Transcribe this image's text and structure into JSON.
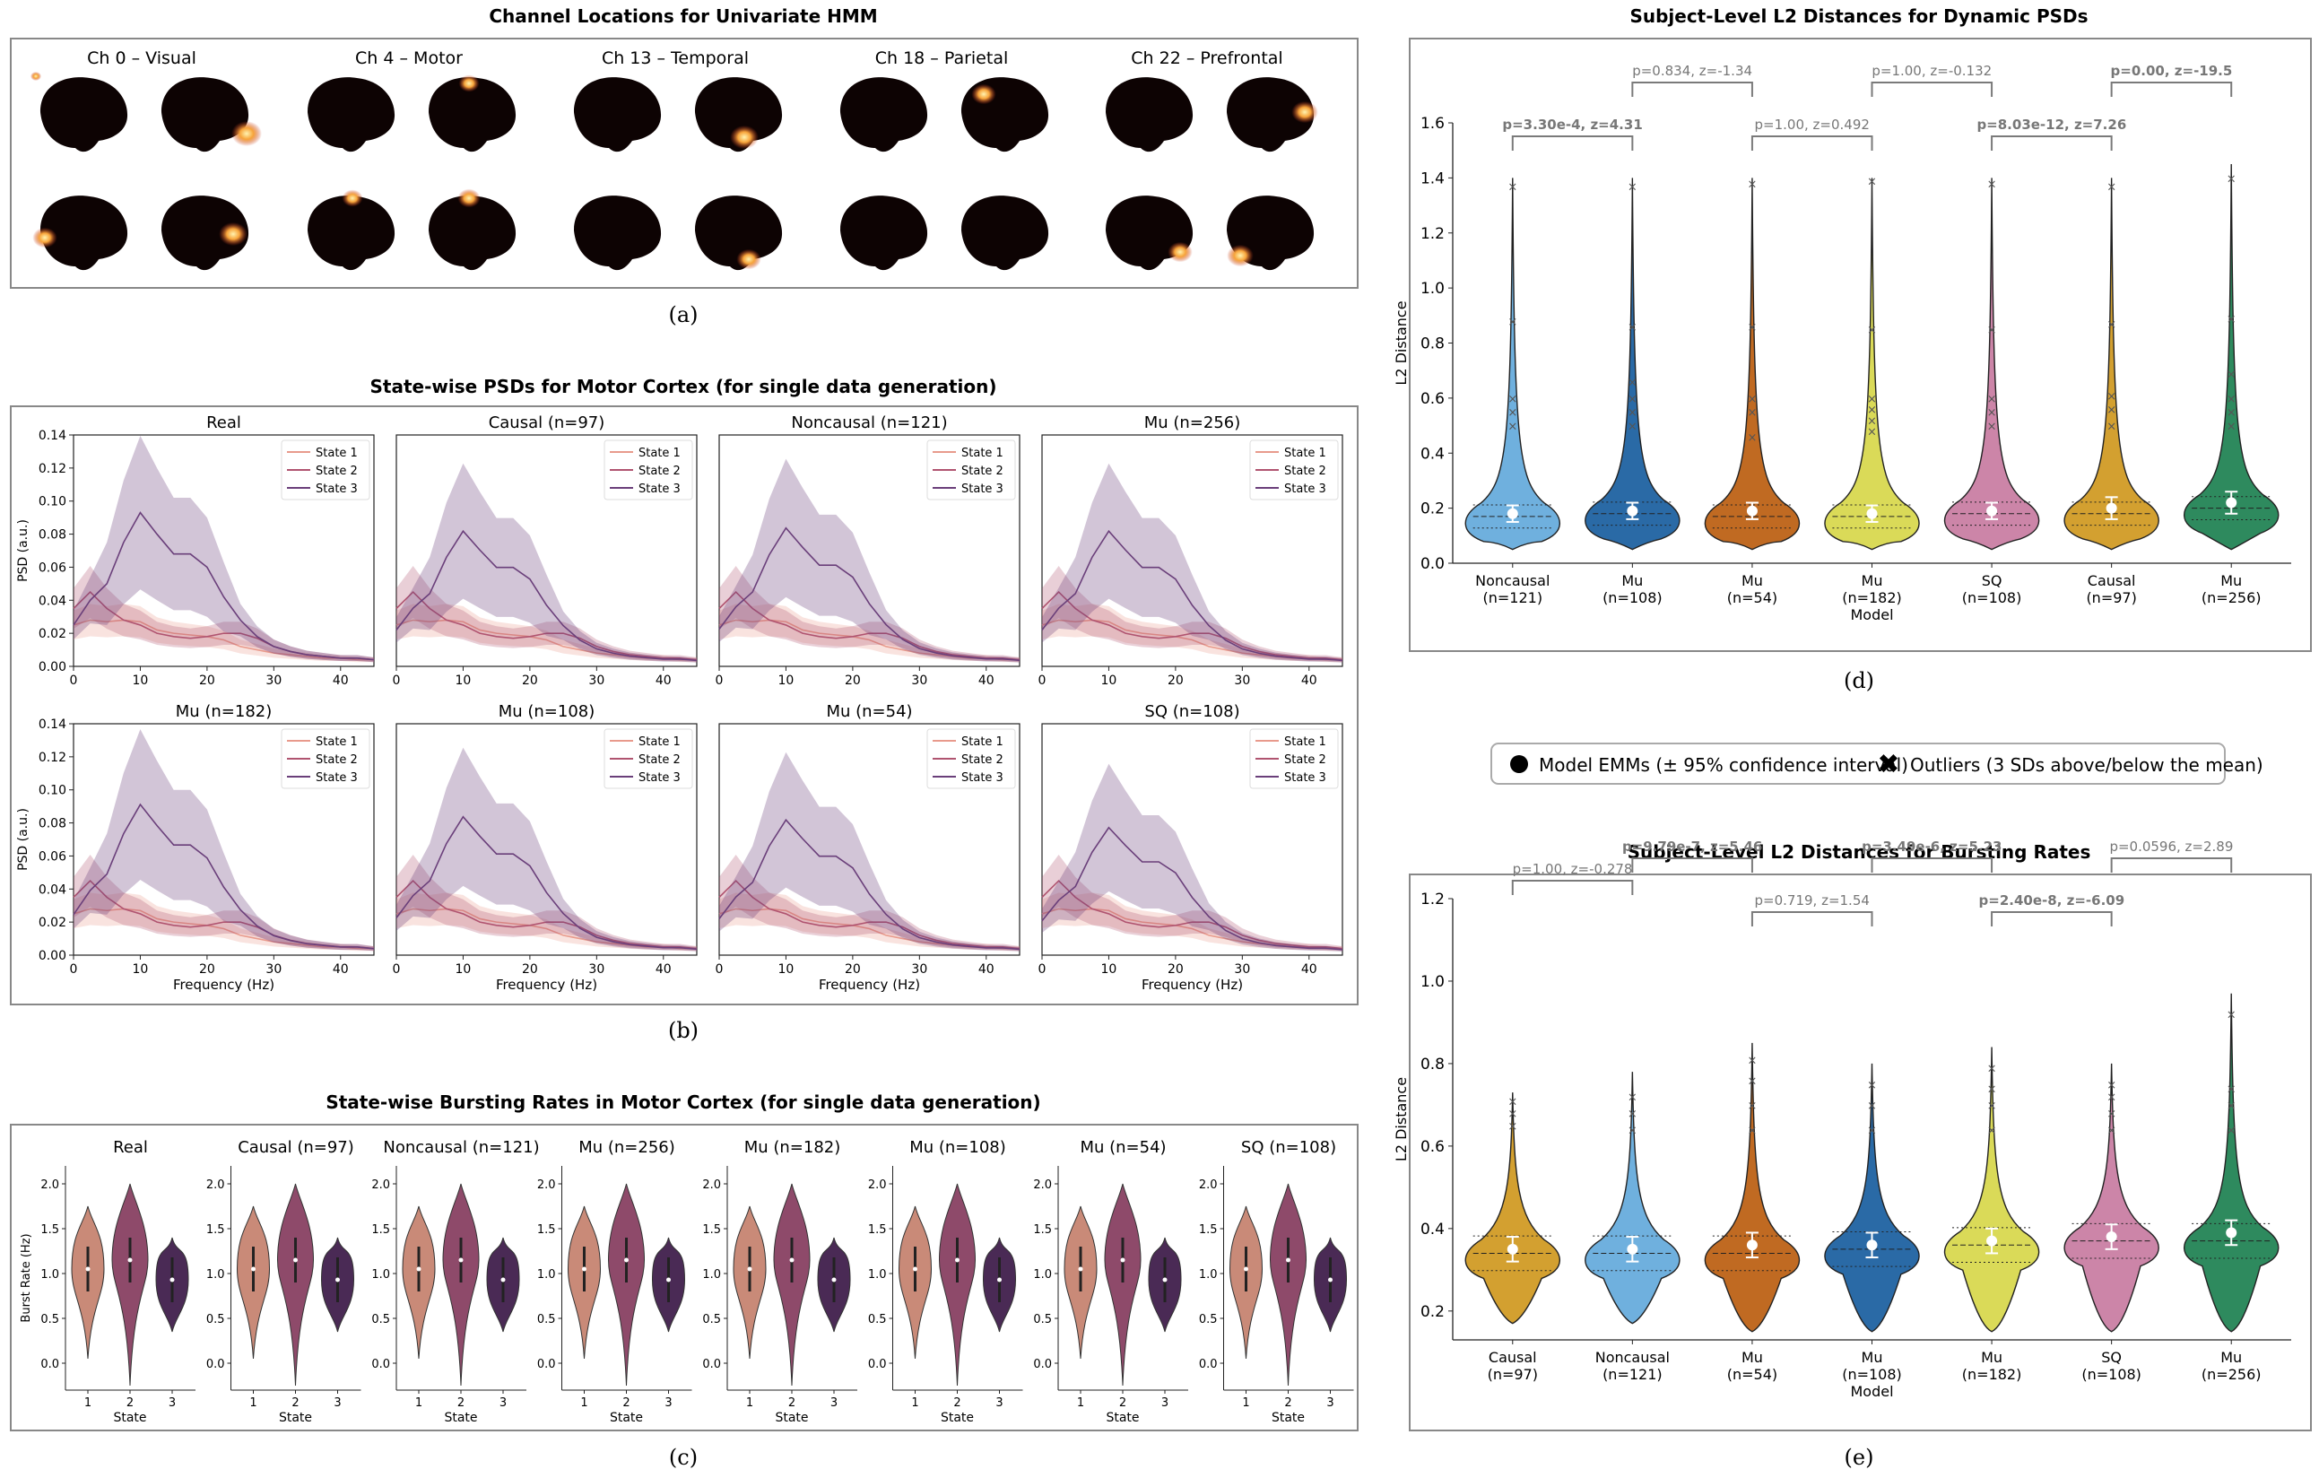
{
  "figure": {
    "panel_letters": [
      "(a)",
      "(b)",
      "(c)",
      "(d)",
      "(e)"
    ]
  },
  "panel_a": {
    "title": "Channel Locations for Univariate HMM",
    "channels": [
      {
        "label": "Ch 0 – Visual",
        "focus": "occipital"
      },
      {
        "label": "Ch 4 – Motor",
        "focus": "motor"
      },
      {
        "label": "Ch 13 – Temporal",
        "focus": "temporal"
      },
      {
        "label": "Ch 18 – Parietal",
        "focus": "parietal"
      },
      {
        "label": "Ch 22 – Prefrontal",
        "focus": "prefrontal"
      }
    ]
  },
  "colors": {
    "state1": "#e89a8c",
    "state2": "#b05470",
    "state3": "#6a3f7a",
    "violin_state1": "#c98a78",
    "violin_state2": "#8e4a6a",
    "violin_state3": "#4a2a55",
    "brain": "#0d0303",
    "heat_core": "#fff3b0",
    "heat_mid": "#f7a43a",
    "heat_edge": "#c0361f",
    "bracket": "#7a7a7a",
    "frame": "#888888"
  },
  "legend": {
    "emm": "Model EMMs (± 95% confidence interval)",
    "outliers": "Outliers (3 SDs above/below the mean)"
  },
  "chart_data": [
    {
      "id": "panel_b",
      "type": "line",
      "title": "State-wise PSDs for Motor Cortex (for single data generation)",
      "xlabel": "Frequency (Hz)",
      "ylabel": "PSD (a.u.)",
      "xlim": [
        0,
        45
      ],
      "ylim": [
        0,
        0.14
      ],
      "xticks": [
        0,
        10,
        20,
        30,
        40
      ],
      "yticks": [
        0.0,
        0.02,
        0.04,
        0.06,
        0.08,
        0.1,
        0.12,
        0.14
      ],
      "ytick_labels": [
        "0.00",
        "0.02",
        "0.04",
        "0.06",
        "0.08",
        "0.10",
        "0.12",
        "0.14"
      ],
      "legend_entries": [
        "State 1",
        "State 2",
        "State 3"
      ],
      "x": [
        0,
        2.5,
        5,
        7.5,
        10,
        12.5,
        15,
        17.5,
        20,
        22.5,
        25,
        27.5,
        30,
        32.5,
        35,
        37.5,
        40,
        42.5,
        45
      ],
      "series": [
        {
          "name": "State 1",
          "values": [
            0.025,
            0.028,
            0.027,
            0.028,
            0.027,
            0.022,
            0.02,
            0.019,
            0.018,
            0.016,
            0.012,
            0.01,
            0.008,
            0.007,
            0.006,
            0.005,
            0.005,
            0.004,
            0.004
          ]
        },
        {
          "name": "State 2",
          "values": [
            0.035,
            0.045,
            0.035,
            0.028,
            0.025,
            0.02,
            0.018,
            0.017,
            0.018,
            0.02,
            0.02,
            0.017,
            0.012,
            0.009,
            0.007,
            0.006,
            0.005,
            0.005,
            0.004
          ]
        },
        {
          "name": "State 3",
          "values": [
            0.025,
            0.04,
            0.05,
            0.075,
            0.093,
            0.08,
            0.068,
            0.068,
            0.06,
            0.042,
            0.028,
            0.018,
            0.012,
            0.009,
            0.007,
            0.006,
            0.005,
            0.005,
            0.004
          ]
        }
      ],
      "subplots": [
        {
          "title": "Real",
          "scale": 1.0
        },
        {
          "title": "Causal (n=97)",
          "scale": 0.88
        },
        {
          "title": "Noncausal (n=121)",
          "scale": 0.9
        },
        {
          "title": "Mu (n=256)",
          "scale": 0.88
        },
        {
          "title": "Mu (n=182)",
          "scale": 0.98
        },
        {
          "title": "Mu (n=108)",
          "scale": 0.9
        },
        {
          "title": "Mu (n=54)",
          "scale": 0.88
        },
        {
          "title": "SQ (n=108)",
          "scale": 0.83
        }
      ]
    },
    {
      "id": "panel_c",
      "type": "violin",
      "title": "State-wise Bursting Rates in Motor Cortex (for single data generation)",
      "xlabel": "State",
      "ylabel": "Burst Rate (Hz)",
      "ylim": [
        -0.3,
        2.2
      ],
      "yticks": [
        0.0,
        0.5,
        1.0,
        1.5,
        2.0
      ],
      "ytick_labels": [
        "0.0",
        "0.5",
        "1.0",
        "1.5",
        "2.0"
      ],
      "categories": [
        "1",
        "2",
        "3"
      ],
      "medians": [
        1.05,
        1.15,
        0.93
      ],
      "ranges": [
        [
          0.05,
          1.75
        ],
        [
          -0.25,
          2.0
        ],
        [
          0.35,
          1.4
        ]
      ],
      "subplots": [
        "Real",
        "Causal (n=97)",
        "Noncausal (n=121)",
        "Mu (n=256)",
        "Mu (n=182)",
        "Mu (n=108)",
        "Mu (n=54)",
        "SQ (n=108)"
      ]
    },
    {
      "id": "panel_d",
      "type": "violin",
      "title": "Subject-Level L2 Distances for Dynamic PSDs",
      "xlabel": "Model",
      "ylabel": "L2 Distance",
      "ylim": [
        0.0,
        1.6
      ],
      "yticks": [
        0.0,
        0.2,
        0.4,
        0.6,
        0.8,
        1.0,
        1.2,
        1.4,
        1.6
      ],
      "ytick_labels": [
        "0.0",
        "0.2",
        "0.4",
        "0.6",
        "0.8",
        "1.0",
        "1.2",
        "1.4",
        "1.6"
      ],
      "categories": [
        {
          "name": "Noncausal",
          "n": "(n=121)",
          "color": "#6fb0de",
          "emm": 0.18,
          "ci": 0.03,
          "median": 0.17,
          "max": 1.4,
          "outliers": [
            0.5,
            0.55,
            0.6,
            0.88,
            1.37
          ]
        },
        {
          "name": "Mu",
          "n": "(n=108)",
          "color": "#2a6aa6",
          "emm": 0.19,
          "ci": 0.03,
          "median": 0.18,
          "max": 1.4,
          "outliers": [
            0.5,
            0.55,
            0.6,
            0.66,
            0.86,
            1.37
          ]
        },
        {
          "name": "Mu",
          "n": "(n=54)",
          "color": "#c06a22",
          "emm": 0.19,
          "ci": 0.03,
          "median": 0.17,
          "max": 1.4,
          "outliers": [
            0.46,
            0.55,
            0.6,
            0.86,
            1.38
          ]
        },
        {
          "name": "Mu",
          "n": "(n=182)",
          "color": "#dada58",
          "emm": 0.18,
          "ci": 0.03,
          "median": 0.17,
          "max": 1.4,
          "outliers": [
            0.48,
            0.52,
            0.56,
            0.6,
            0.85,
            1.39
          ]
        },
        {
          "name": "SQ",
          "n": "(n=108)",
          "color": "#cc85a8",
          "emm": 0.19,
          "ci": 0.03,
          "median": 0.18,
          "max": 1.4,
          "outliers": [
            0.5,
            0.55,
            0.6,
            0.85,
            1.38
          ]
        },
        {
          "name": "Causal",
          "n": "(n=97)",
          "color": "#d3a030",
          "emm": 0.2,
          "ci": 0.04,
          "median": 0.18,
          "max": 1.4,
          "outliers": [
            0.5,
            0.56,
            0.61,
            0.87,
            1.37
          ]
        },
        {
          "name": "Mu",
          "n": "(n=256)",
          "color": "#2e8a5e",
          "emm": 0.22,
          "ci": 0.04,
          "median": 0.2,
          "max": 1.45,
          "outliers": [
            0.5,
            0.55,
            0.6,
            0.69,
            0.89,
            1.4
          ]
        }
      ],
      "brackets": [
        {
          "from": 0,
          "to": 1,
          "level": 1,
          "text": "p=3.30e-4, z=4.31",
          "bold": true
        },
        {
          "from": 1,
          "to": 2,
          "level": 2,
          "text": "p=0.834, z=-1.34",
          "bold": false
        },
        {
          "from": 2,
          "to": 3,
          "level": 1,
          "text": "p=1.00, z=0.492",
          "bold": false
        },
        {
          "from": 3,
          "to": 4,
          "level": 2,
          "text": "p=1.00, z=-0.132",
          "bold": false
        },
        {
          "from": 4,
          "to": 5,
          "level": 1,
          "text": "p=8.03e-12, z=7.26",
          "bold": true
        },
        {
          "from": 5,
          "to": 6,
          "level": 2,
          "text": "p=0.00, z=-19.5",
          "bold": true
        }
      ]
    },
    {
      "id": "panel_e",
      "type": "violin",
      "title": "Subject-Level L2 Distances for Bursting Rates",
      "xlabel": "Model",
      "ylabel": "L2 Distance",
      "ylim": [
        0.13,
        1.2
      ],
      "yticks": [
        0.2,
        0.4,
        0.6,
        0.8,
        1.0,
        1.2
      ],
      "ytick_labels": [
        "0.2",
        "0.4",
        "0.6",
        "0.8",
        "1.0",
        "1.2"
      ],
      "categories": [
        {
          "name": "Causal",
          "n": "(n=97)",
          "color": "#d3a030",
          "emm": 0.35,
          "ci": 0.03,
          "median": 0.34,
          "min": 0.17,
          "max": 0.73,
          "outliers": [
            0.65,
            0.68,
            0.71
          ]
        },
        {
          "name": "Noncausal",
          "n": "(n=121)",
          "color": "#6fb0de",
          "emm": 0.35,
          "ci": 0.03,
          "median": 0.34,
          "min": 0.17,
          "max": 0.78,
          "outliers": [
            0.64,
            0.68,
            0.72
          ]
        },
        {
          "name": "Mu",
          "n": "(n=54)",
          "color": "#c06a22",
          "emm": 0.36,
          "ci": 0.03,
          "median": 0.34,
          "min": 0.15,
          "max": 0.85,
          "outliers": [
            0.64,
            0.7,
            0.76,
            0.81
          ]
        },
        {
          "name": "Mu",
          "n": "(n=108)",
          "color": "#2a6aa6",
          "emm": 0.36,
          "ci": 0.03,
          "median": 0.35,
          "min": 0.15,
          "max": 0.8,
          "outliers": [
            0.64,
            0.7,
            0.75
          ]
        },
        {
          "name": "Mu",
          "n": "(n=182)",
          "color": "#dada58",
          "emm": 0.37,
          "ci": 0.03,
          "median": 0.36,
          "min": 0.15,
          "max": 0.84,
          "outliers": [
            0.64,
            0.7,
            0.74,
            0.79
          ]
        },
        {
          "name": "SQ",
          "n": "(n=108)",
          "color": "#cc85a8",
          "emm": 0.38,
          "ci": 0.03,
          "median": 0.37,
          "min": 0.15,
          "max": 0.8,
          "outliers": [
            0.64,
            0.68,
            0.72,
            0.75
          ]
        },
        {
          "name": "Mu",
          "n": "(n=256)",
          "color": "#2e8a5e",
          "emm": 0.39,
          "ci": 0.03,
          "median": 0.37,
          "min": 0.15,
          "max": 0.97,
          "outliers": [
            0.64,
            0.7,
            0.74,
            0.92
          ]
        }
      ],
      "brackets": [
        {
          "from": 0,
          "to": 1,
          "level": 0,
          "text": "p=1.00, z=-0.278",
          "bold": false
        },
        {
          "from": 1,
          "to": 2,
          "level": 2,
          "text": "p=9.79e-7, z=5.46",
          "bold": true
        },
        {
          "from": 2,
          "to": 3,
          "level": 1,
          "text": "p=0.719, z=1.54",
          "bold": false
        },
        {
          "from": 3,
          "to": 4,
          "level": 2,
          "text": "p=3.49e-6, z=5.23",
          "bold": true
        },
        {
          "from": 4,
          "to": 5,
          "level": 1,
          "text": "p=2.40e-8, z=-6.09",
          "bold": true
        },
        {
          "from": 5,
          "to": 6,
          "level": 2,
          "text": "p=0.0596, z=2.89",
          "bold": false
        }
      ]
    }
  ]
}
